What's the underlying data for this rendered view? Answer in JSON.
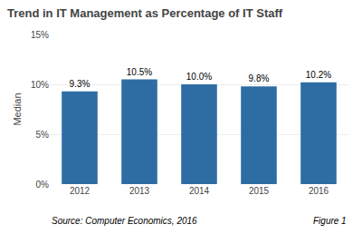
{
  "chart_data": {
    "type": "bar",
    "title": "Trend in IT Management as Percentage of IT Staff",
    "categories": [
      "2012",
      "2013",
      "2014",
      "2015",
      "2016"
    ],
    "values": [
      9.3,
      10.5,
      10.0,
      9.8,
      10.2
    ],
    "value_labels": [
      "9.3%",
      "10.5%",
      "10.0%",
      "9.8%",
      "10.2%"
    ],
    "data_labels": true,
    "color": "#2E6DA4",
    "ylabel": "Median",
    "ylim": [
      0,
      15
    ],
    "yticks": [
      {
        "value": 0,
        "label": "0%"
      },
      {
        "value": 5,
        "label": "5%"
      },
      {
        "value": 10,
        "label": "10%"
      },
      {
        "value": 15,
        "label": "15%"
      }
    ],
    "grid": true,
    "annotations": [
      "Source: Computer Economics, 2016",
      "Figure 1"
    ]
  }
}
